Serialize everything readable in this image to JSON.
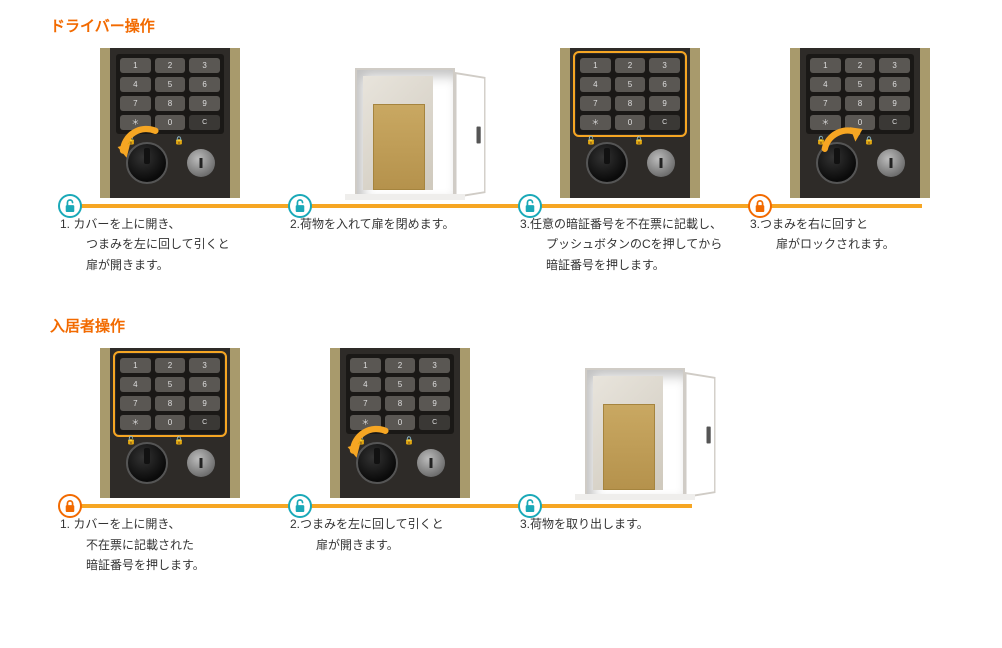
{
  "driver": {
    "title": "ドライバー操作",
    "steps": [
      {
        "text": "1. カバーを上に開き、\n　つまみを左に回して引くと\n　扉が開きます。",
        "img": "keypad",
        "arrow": "left",
        "lock": "teal",
        "outlined": false
      },
      {
        "text": "2.荷物を入れて扉を閉めます。",
        "img": "locker",
        "lock": "teal"
      },
      {
        "text": "3.任意の暗証番号を不在票に記載し、\n　プッシュボタンのCを押してから\n　暗証番号を押します。",
        "img": "keypad",
        "lock": "teal",
        "outlined": true
      },
      {
        "text": "3.つまみを右に回すと\n　扉がロックされます。",
        "img": "keypad",
        "arrow": "right",
        "lock": "orange",
        "outlined": false
      }
    ]
  },
  "resident": {
    "title": "入居者操作",
    "steps": [
      {
        "text": "1. カバーを上に開き、\n　不在票に記載された\n　暗証番号を押します。",
        "img": "keypad",
        "lock": "orange",
        "outlined": true
      },
      {
        "text": "2.つまみを左に回して引くと\n　扉が開きます。",
        "img": "keypad",
        "arrow": "left",
        "lock": "teal",
        "outlined": false
      },
      {
        "text": "3.荷物を取り出します。",
        "img": "locker",
        "lock": "teal"
      }
    ]
  },
  "keypad_keys": [
    "1",
    "2",
    "3",
    "4",
    "5",
    "6",
    "7",
    "8",
    "9",
    "＊",
    "0",
    "C"
  ],
  "colors": {
    "accent": "#f26a00",
    "bar": "#f6a623",
    "teal": "#1aa9b8"
  }
}
